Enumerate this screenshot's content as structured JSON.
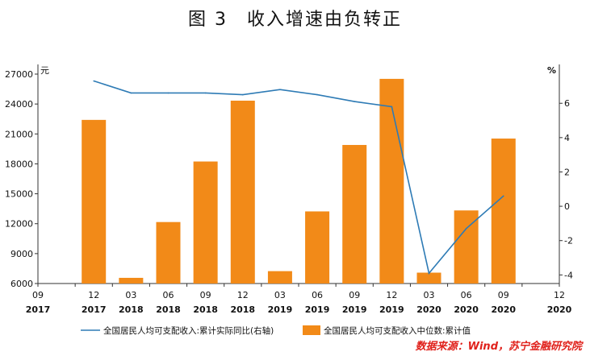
{
  "title": "图 3　收入增速由负转正",
  "source": "数据来源：Wind，苏宁金融研究院",
  "chart_data": {
    "type": "bar",
    "categories": [
      [
        "09",
        "2017"
      ],
      [
        "12",
        "2017"
      ],
      [
        "03",
        "2018"
      ],
      [
        "06",
        "2018"
      ],
      [
        "09",
        "2018"
      ],
      [
        "12",
        "2018"
      ],
      [
        "03",
        "2019"
      ],
      [
        "06",
        "2019"
      ],
      [
        "09",
        "2019"
      ],
      [
        "12",
        "2019"
      ],
      [
        "03",
        "2020"
      ],
      [
        "06",
        "2020"
      ],
      [
        "09",
        "2020"
      ],
      [
        "12",
        "2020"
      ]
    ],
    "left_axis": {
      "unit": "元",
      "min": 6000,
      "max": 27000,
      "ticks": [
        6000,
        9000,
        12000,
        15000,
        18000,
        21000,
        24000,
        27000
      ]
    },
    "right_axis": {
      "unit": "%",
      "min": -4.5,
      "max": 7.7,
      "ticks": [
        -4,
        -2,
        0,
        2,
        4,
        6
      ]
    },
    "series": [
      {
        "name": "全国居民人均可支配收入中位数:累计值",
        "type": "bar",
        "axis": "left",
        "color": "#f28a18",
        "values": [
          null,
          22408,
          6569,
          12164,
          18235,
          24336,
          7241,
          13231,
          19894,
          26523,
          7089,
          13328,
          20535,
          null
        ]
      },
      {
        "name": "全国居民人均可支配收入:累计实际同比(右轴)",
        "type": "line",
        "axis": "right",
        "color": "#2e7bb5",
        "values": [
          null,
          7.3,
          6.6,
          6.6,
          6.6,
          6.5,
          6.8,
          6.5,
          6.1,
          5.8,
          -3.9,
          -1.3,
          0.6,
          null
        ]
      }
    ]
  }
}
